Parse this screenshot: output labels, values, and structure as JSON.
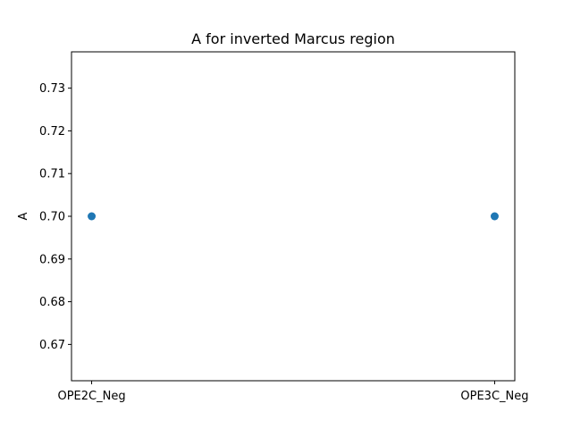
{
  "chart_data": {
    "type": "scatter",
    "title": "A for inverted Marcus region",
    "xlabel": "",
    "ylabel": "A",
    "categories": [
      "OPE2C_Neg",
      "OPE3C_Neg"
    ],
    "series": [
      {
        "values": [
          0.7,
          0.7
        ],
        "color": "#1f77b4"
      }
    ],
    "ylim": [
      0.6615,
      0.7385
    ],
    "yticks": [
      0.67,
      0.68,
      0.69,
      0.7,
      0.71,
      0.72,
      0.73
    ],
    "ytick_labels": [
      "0.67",
      "0.68",
      "0.69",
      "0.70",
      "0.71",
      "0.72",
      "0.73"
    ],
    "grid": false,
    "legend": "none"
  }
}
